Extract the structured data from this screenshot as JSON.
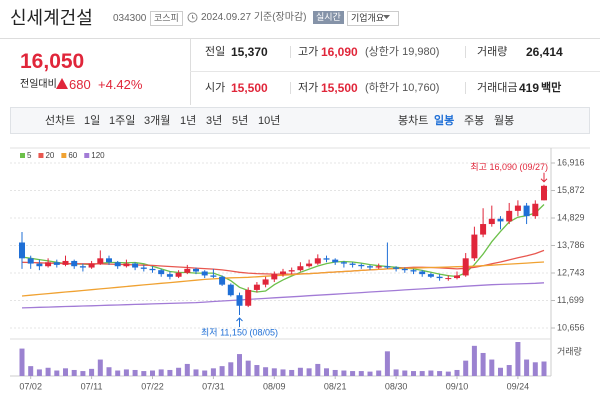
{
  "header": {
    "name": "신세계건설",
    "code": "034300",
    "market": "코스피",
    "date": "2024.09.27 기준(장마감)",
    "realtime": "실시간",
    "overview": "기업개요"
  },
  "price": {
    "current": "16,050",
    "change_label": "전일대비",
    "change": "680",
    "change_pct": "+4.42%"
  },
  "summary": {
    "rows": [
      [
        {
          "label": "전일",
          "value": "15,370"
        },
        {
          "label": "고가",
          "value": "16,090",
          "extra": "(상한가 19,980)"
        },
        {
          "label": "거래량",
          "value": "26,414"
        }
      ],
      [
        {
          "label": "시가",
          "value": "15,500"
        },
        {
          "label": "저가",
          "value": "15,500",
          "extra": "(하한가 10,760)"
        },
        {
          "label": "거래대금",
          "value": "419",
          "unit": "백만"
        }
      ]
    ]
  },
  "tabs": {
    "line_chart": "선차트",
    "periods": [
      "1일",
      "1주일",
      "3개월",
      "1년",
      "3년",
      "5년",
      "10년"
    ],
    "candle_chart": "봉차트",
    "candle_periods": [
      "일봉",
      "주봉",
      "월봉"
    ]
  },
  "chart_data": {
    "type": "candlestick",
    "categories": [
      null,
      "07/02",
      null,
      null,
      null,
      null,
      null,
      null,
      "07/11",
      null,
      null,
      null,
      null,
      null,
      null,
      "07/22",
      null,
      null,
      null,
      null,
      null,
      null,
      "07/31",
      null,
      null,
      null,
      null,
      null,
      null,
      "08/09",
      null,
      null,
      null,
      null,
      null,
      null,
      "08/21",
      null,
      null,
      null,
      null,
      null,
      null,
      "08/30",
      null,
      null,
      null,
      null,
      null,
      null,
      "09/10",
      null,
      null,
      null,
      null,
      null,
      null,
      "09/24",
      null,
      null,
      null
    ],
    "open": [
      13900,
      13300,
      13100,
      13000,
      13150,
      13050,
      13200,
      13000,
      12950,
      13100,
      13300,
      13150,
      13000,
      13100,
      12950,
      12900,
      12850,
      12700,
      12600,
      12750,
      12900,
      12800,
      12650,
      12600,
      12300,
      11900,
      11500,
      12100,
      12300,
      12500,
      12700,
      12800,
      12850,
      13000,
      13100,
      13300,
      13250,
      13150,
      13100,
      13050,
      13000,
      12950,
      13000,
      12950,
      12900,
      12850,
      12800,
      12700,
      12600,
      12550,
      12550,
      12650,
      13300,
      14200,
      14600,
      14800,
      14700,
      15100,
      15300,
      14900,
      15500
    ],
    "high": [
      14300,
      13400,
      13250,
      13300,
      13250,
      13400,
      13250,
      13100,
      13200,
      13600,
      13400,
      13200,
      13250,
      13150,
      13050,
      13000,
      12900,
      12800,
      12850,
      13050,
      12950,
      12850,
      12900,
      12650,
      12350,
      12000,
      12200,
      12400,
      12600,
      12800,
      12900,
      12950,
      13150,
      13250,
      13450,
      13400,
      13300,
      13200,
      13150,
      13100,
      13050,
      13100,
      13900,
      13000,
      12950,
      12900,
      12850,
      12750,
      12700,
      12650,
      12800,
      13500,
      14500,
      15200,
      15300,
      14900,
      15400,
      15500,
      15400,
      15500,
      16090
    ],
    "low": [
      12900,
      12900,
      12850,
      12950,
      12950,
      13000,
      12900,
      12800,
      12900,
      13050,
      13050,
      12900,
      12950,
      12850,
      12800,
      12750,
      12600,
      12500,
      12550,
      12700,
      12700,
      12550,
      12550,
      12250,
      11850,
      11150,
      11450,
      12000,
      12200,
      12400,
      12600,
      12700,
      12800,
      12950,
      13050,
      13150,
      13050,
      12950,
      12950,
      12900,
      12850,
      12900,
      12900,
      12800,
      12750,
      12700,
      12600,
      12550,
      12450,
      12450,
      12500,
      12600,
      13200,
      14100,
      14500,
      14400,
      14600,
      14900,
      14600,
      14800,
      15500
    ],
    "close": [
      13300,
      13100,
      13000,
      13150,
      13050,
      13200,
      13000,
      12950,
      13100,
      13300,
      13150,
      13000,
      13100,
      12950,
      12900,
      12850,
      12700,
      12600,
      12750,
      12900,
      12800,
      12650,
      12600,
      12300,
      11900,
      11500,
      12100,
      12300,
      12500,
      12700,
      12800,
      12850,
      13000,
      13100,
      13300,
      13250,
      13150,
      13100,
      13050,
      13000,
      12950,
      13000,
      12950,
      12900,
      12850,
      12800,
      12700,
      12600,
      12550,
      12550,
      12650,
      13300,
      14200,
      14600,
      14800,
      14700,
      15100,
      15300,
      14900,
      15370,
      16050
    ],
    "series": [
      {
        "name": "5",
        "color": "#6cc04a",
        "values": [
          13350,
          13300,
          13250,
          13200,
          13150,
          13100,
          13080,
          13080,
          13060,
          13110,
          13140,
          13140,
          13130,
          13140,
          13090,
          13000,
          12900,
          12800,
          12760,
          12760,
          12740,
          12740,
          12740,
          12620,
          12450,
          12200,
          12080,
          12020,
          12060,
          12300,
          12480,
          12630,
          12770,
          12890,
          13010,
          13100,
          13160,
          13180,
          13160,
          13120,
          13060,
          13020,
          12990,
          12960,
          12930,
          12900,
          12840,
          12770,
          12700,
          12640,
          12610,
          12750,
          13060,
          13460,
          13930,
          14320,
          14680,
          14860,
          14920,
          15020,
          15340
        ]
      },
      {
        "name": "20",
        "color": "#e8574f",
        "values": [
          13150,
          13140,
          13130,
          13120,
          13110,
          13100,
          13100,
          13090,
          13090,
          13090,
          13080,
          13070,
          13060,
          13050,
          13040,
          13030,
          13010,
          12990,
          12970,
          12950,
          12930,
          12910,
          12890,
          12860,
          12820,
          12770,
          12740,
          12720,
          12710,
          12700,
          12700,
          12700,
          12710,
          12720,
          12740,
          12760,
          12780,
          12800,
          12820,
          12840,
          12860,
          12880,
          12900,
          12920,
          12940,
          12960,
          12960,
          12950,
          12940,
          12920,
          12900,
          12920,
          12960,
          13020,
          13090,
          13160,
          13240,
          13320,
          13390,
          13480,
          13600
        ]
      },
      {
        "name": "60",
        "color": "#f0a232",
        "values": [
          11870,
          11900,
          11930,
          11960,
          11990,
          12020,
          12050,
          12080,
          12110,
          12140,
          12170,
          12200,
          12230,
          12260,
          12290,
          12320,
          12350,
          12380,
          12410,
          12440,
          12470,
          12500,
          12520,
          12540,
          12560,
          12570,
          12580,
          12600,
          12620,
          12640,
          12660,
          12680,
          12700,
          12720,
          12740,
          12760,
          12780,
          12800,
          12820,
          12840,
          12860,
          12880,
          12900,
          12910,
          12920,
          12930,
          12940,
          12950,
          12960,
          12970,
          12980,
          12990,
          13000,
          13020,
          13040,
          13060,
          13080,
          13100,
          13120,
          13140,
          13160
        ]
      },
      {
        "name": "120",
        "color": "#a27bd6",
        "values": [
          11420,
          11430,
          11440,
          11450,
          11460,
          11470,
          11480,
          11490,
          11500,
          11510,
          11520,
          11530,
          11540,
          11550,
          11560,
          11570,
          11580,
          11590,
          11600,
          11610,
          11620,
          11640,
          11660,
          11680,
          11700,
          11720,
          11740,
          11760,
          11780,
          11800,
          11820,
          11840,
          11860,
          11880,
          11900,
          11920,
          11940,
          11960,
          11980,
          12000,
          12020,
          12040,
          12060,
          12080,
          12100,
          12120,
          12140,
          12160,
          12180,
          12200,
          12220,
          12240,
          12260,
          12280,
          12300,
          12310,
          12320,
          12330,
          12340,
          12350,
          12370
        ]
      }
    ],
    "up_color": "#e0263a",
    "down_color": "#1f6fd6",
    "ylim": [
      10656,
      16916
    ],
    "yticks": [
      {
        "value": 10656,
        "label": "10,656"
      },
      {
        "value": 11699,
        "label": "11,699"
      },
      {
        "value": 12743,
        "label": "12,743"
      },
      {
        "value": 13786,
        "label": "13,786"
      },
      {
        "value": 14829,
        "label": "14,829"
      },
      {
        "value": 15872,
        "label": "15,872"
      },
      {
        "value": 16916,
        "label": "16,916"
      }
    ],
    "grid": true,
    "annotations": {
      "high": "최고 16,090 (09/27)",
      "low": "최저 11,150 (08/05)"
    },
    "volume": {
      "label": "거래량",
      "color": "#9b82d0",
      "values": [
        50000,
        18000,
        12000,
        15000,
        10000,
        14000,
        11000,
        9000,
        13000,
        30000,
        16000,
        10000,
        12000,
        11000,
        9000,
        10000,
        12000,
        11000,
        15000,
        22000,
        12000,
        10000,
        14000,
        18000,
        25000,
        40000,
        28000,
        20000,
        16000,
        14000,
        12000,
        11000,
        15000,
        14000,
        22000,
        14000,
        11000,
        10000,
        9000,
        9000,
        8000,
        10000,
        45000,
        12000,
        10000,
        9000,
        9000,
        10000,
        9000,
        8000,
        11000,
        28000,
        55000,
        42000,
        30000,
        15000,
        20000,
        62000,
        30000,
        25000,
        26414
      ]
    }
  }
}
